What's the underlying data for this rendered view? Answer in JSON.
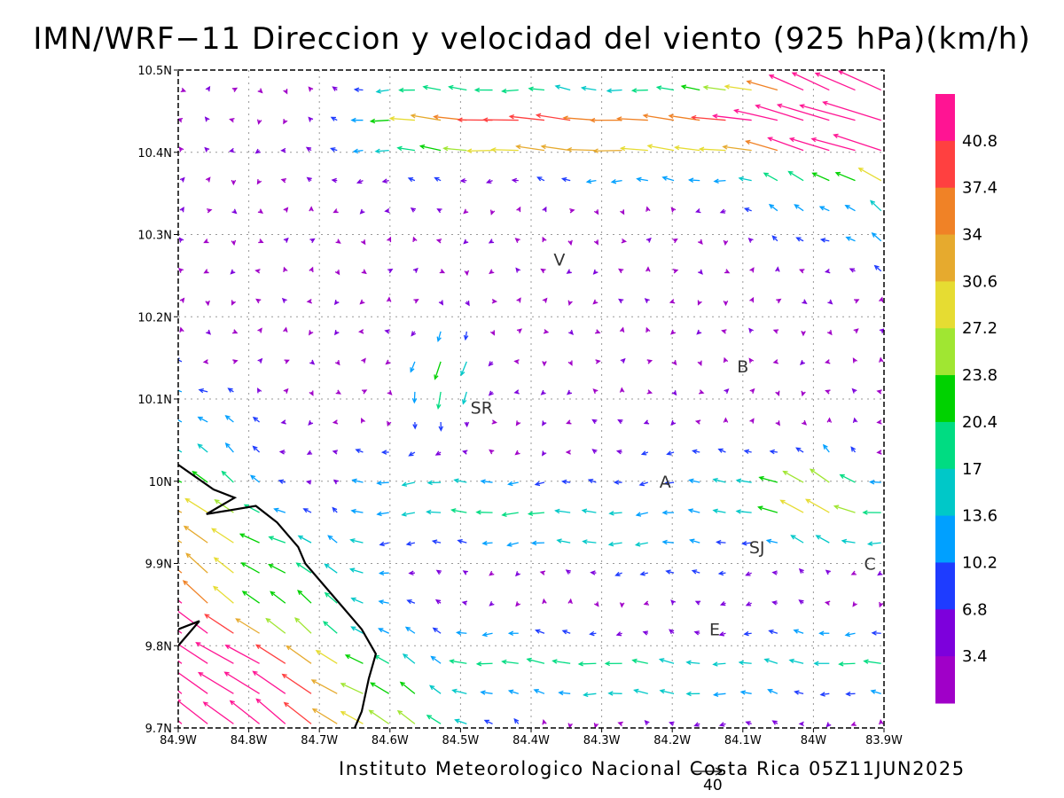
{
  "title": "IMN/WRF−11 Direccion y velocidad del viento (925 hPa)(km/h)",
  "footer": "Instituto Meteorologico Nacional Costa Rica 05Z11JUN2025",
  "reference_vector": {
    "value": "40"
  },
  "map": {
    "lon_range": [
      -84.9,
      -83.9
    ],
    "lat_range": [
      9.7,
      10.5
    ],
    "x_ticks": [
      "84.9W",
      "84.8W",
      "84.7W",
      "84.6W",
      "84.5W",
      "84.4W",
      "84.3W",
      "84.2W",
      "84.1W",
      "84W",
      "83.9W"
    ],
    "y_ticks": [
      "9.7N",
      "9.8N",
      "9.9N",
      "10N",
      "10.1N",
      "10.2N",
      "10.3N",
      "10.4N",
      "10.5N"
    ],
    "grid": true,
    "cities": [
      {
        "label": "V",
        "lon": -84.36,
        "lat": 10.27
      },
      {
        "label": "SR",
        "lon": -84.47,
        "lat": 10.09
      },
      {
        "label": "B",
        "lon": -84.1,
        "lat": 10.14
      },
      {
        "label": "A",
        "lon": -84.21,
        "lat": 10.0
      },
      {
        "label": "SJ",
        "lon": -84.08,
        "lat": 9.92
      },
      {
        "label": "C",
        "lon": -83.92,
        "lat": 9.9
      },
      {
        "label": "E",
        "lon": -84.14,
        "lat": 9.82
      }
    ],
    "coastline": [
      [
        -84.9,
        10.02
      ],
      [
        -84.85,
        9.99
      ],
      [
        -84.82,
        9.98
      ],
      [
        -84.86,
        9.96
      ],
      [
        -84.79,
        9.97
      ],
      [
        -84.76,
        9.95
      ],
      [
        -84.73,
        9.92
      ],
      [
        -84.72,
        9.9
      ],
      [
        -84.68,
        9.86
      ],
      [
        -84.67,
        9.85
      ],
      [
        -84.64,
        9.82
      ],
      [
        -84.62,
        9.79
      ],
      [
        -84.63,
        9.76
      ],
      [
        -84.64,
        9.72
      ],
      [
        -84.65,
        9.7
      ]
    ],
    "coastline_peninsula": [
      [
        -84.9,
        9.8
      ],
      [
        -84.87,
        9.83
      ],
      [
        -84.9,
        9.82
      ]
    ]
  },
  "colorbar": {
    "labels": [
      "40.8",
      "37.4",
      "34",
      "30.6",
      "27.2",
      "23.8",
      "20.4",
      "17",
      "13.6",
      "10.2",
      "6.8",
      "3.4"
    ],
    "colors": [
      "#ff1493",
      "#ff4040",
      "#f08226",
      "#e6aa2e",
      "#e6dc32",
      "#a0e632",
      "#00d200",
      "#00dc82",
      "#00c8c8",
      "#00a0ff",
      "#1e3cff",
      "#7d00dc",
      "#a000c8"
    ]
  }
}
